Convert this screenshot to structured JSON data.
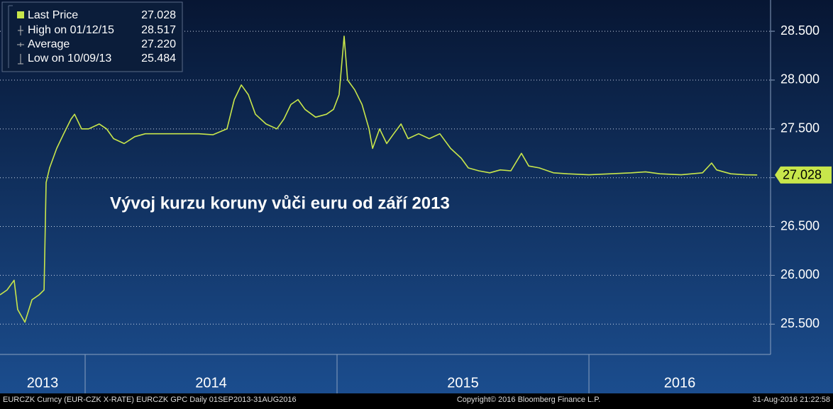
{
  "chart_data": {
    "type": "line",
    "annotation": "Vývoj kurzu koruny vůči euru od září 2013",
    "legend": [
      {
        "label": "Last Price",
        "value": "27.028"
      },
      {
        "label": "High on 01/12/15",
        "value": "28.517"
      },
      {
        "label": "Average",
        "value": "27.220"
      },
      {
        "label": "Low on 10/09/13",
        "value": "25.484"
      }
    ],
    "last_value_label": {
      "value": 27.028,
      "label": "27.028"
    },
    "x": [
      2013.662,
      2013.69,
      2013.718,
      2013.732,
      2013.761,
      2013.789,
      2013.817,
      2013.837,
      2013.845,
      2013.859,
      2013.887,
      2013.915,
      2013.944,
      2013.958,
      2013.986,
      2014.014,
      2014.056,
      2014.085,
      2014.113,
      2014.155,
      2014.197,
      2014.239,
      2014.282,
      2014.338,
      2014.394,
      2014.451,
      2014.507,
      2014.563,
      2014.592,
      2014.62,
      2014.648,
      2014.676,
      2014.718,
      2014.761,
      2014.789,
      2014.817,
      2014.845,
      2014.873,
      2014.915,
      2014.958,
      2014.986,
      2015.008,
      2015.028,
      2015.042,
      2015.07,
      2015.099,
      2015.127,
      2015.141,
      2015.169,
      2015.197,
      2015.225,
      2015.254,
      2015.282,
      2015.324,
      2015.366,
      2015.408,
      2015.451,
      2015.493,
      2015.521,
      2015.563,
      2015.606,
      2015.648,
      2015.69,
      2015.732,
      2015.761,
      2015.803,
      2015.859,
      2015.915,
      2016.0,
      2016.085,
      2016.169,
      2016.225,
      2016.282,
      2016.366,
      2016.451,
      2016.487,
      2016.507,
      2016.563,
      2016.62,
      2016.668
    ],
    "series": [
      {
        "name": "Last Price",
        "color": "#c8e64b",
        "values": [
          25.8,
          25.85,
          25.95,
          25.65,
          25.52,
          25.75,
          25.8,
          25.85,
          26.95,
          27.1,
          27.3,
          27.45,
          27.6,
          27.65,
          27.5,
          27.5,
          27.55,
          27.5,
          27.4,
          27.35,
          27.42,
          27.45,
          27.45,
          27.45,
          27.45,
          27.45,
          27.44,
          27.5,
          27.8,
          27.95,
          27.85,
          27.65,
          27.55,
          27.5,
          27.6,
          27.75,
          27.8,
          27.7,
          27.62,
          27.65,
          27.7,
          27.85,
          28.45,
          28.0,
          27.9,
          27.75,
          27.5,
          27.3,
          27.5,
          27.35,
          27.45,
          27.55,
          27.4,
          27.45,
          27.4,
          27.45,
          27.3,
          27.2,
          27.1,
          27.07,
          27.05,
          27.08,
          27.07,
          27.25,
          27.12,
          27.1,
          27.05,
          27.04,
          27.03,
          27.04,
          27.05,
          27.06,
          27.04,
          27.03,
          27.05,
          27.15,
          27.08,
          27.04,
          27.03,
          27.028
        ]
      }
    ],
    "xlim": [
      2013.662,
      2016.721
    ],
    "xticks": [
      2014,
      2015,
      2016
    ],
    "year_labels": [
      2013,
      2014,
      2015,
      2016
    ],
    "ylim": [
      25.19,
      28.82
    ],
    "yticks": [
      {
        "value": 25.5,
        "label": "25.500"
      },
      {
        "value": 26,
        "label": "26.000"
      },
      {
        "value": 26.5,
        "label": "26.500"
      },
      {
        "value": 27,
        "label": "27.000"
      },
      {
        "value": 27.5,
        "label": "27.500"
      },
      {
        "value": 28,
        "label": "28.000"
      },
      {
        "value": 28.5,
        "label": "28.500"
      }
    ],
    "grid": true,
    "footer": {
      "left": "EURCZK Curncy (EUR-CZK X-RATE) EURCZK GPC  Daily 01SEP2013-31AUG2016",
      "center": "Copyright© 2016 Bloomberg Finance L.P.",
      "right": "31-Aug-2016 21:22:58"
    }
  }
}
